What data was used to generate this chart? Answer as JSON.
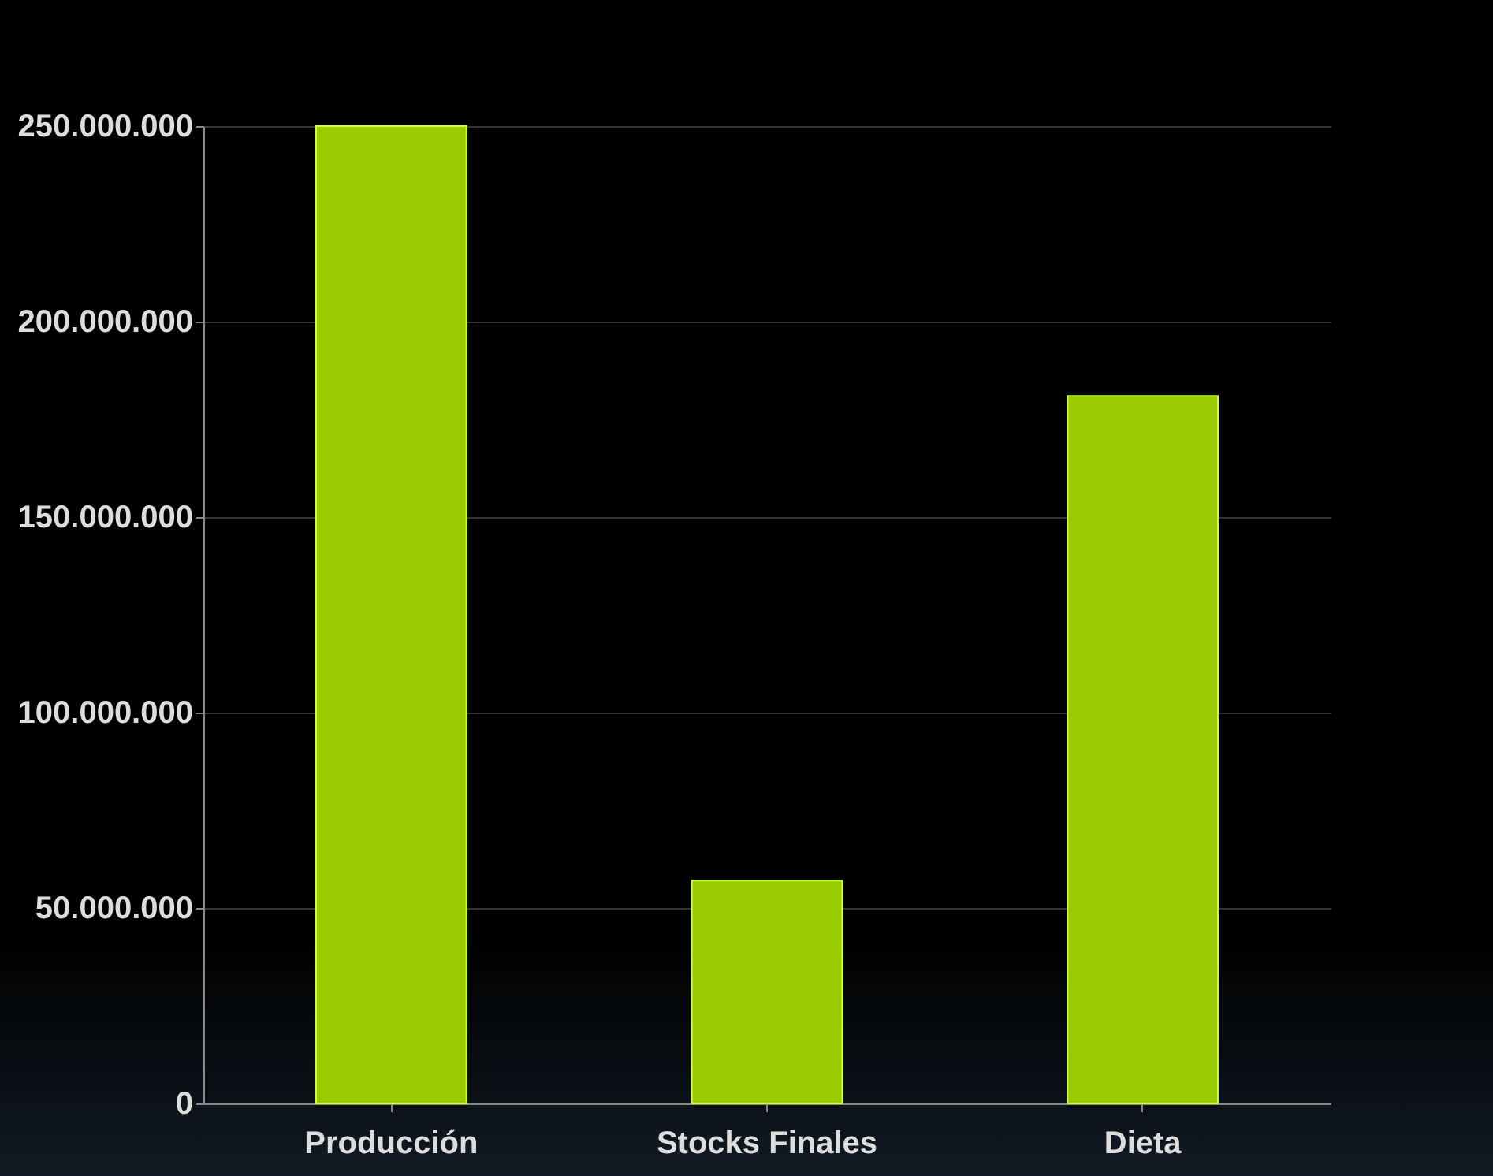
{
  "chart_data": {
    "type": "bar",
    "categories": [
      "Producción",
      "Stocks Finales",
      "Dieta"
    ],
    "values": [
      250000000,
      57000000,
      181000000
    ],
    "color": "#99cc00",
    "ylim": [
      0,
      250000000
    ],
    "yticks": [
      {
        "value": 0,
        "label": "0"
      },
      {
        "value": 50000000,
        "label": "50.000.000"
      },
      {
        "value": 100000000,
        "label": "100.000.000"
      },
      {
        "value": 150000000,
        "label": "150.000.000"
      },
      {
        "value": 200000000,
        "label": "200.000.000"
      },
      {
        "value": 250000000,
        "label": "250.000.000"
      }
    ],
    "grid": "y"
  }
}
